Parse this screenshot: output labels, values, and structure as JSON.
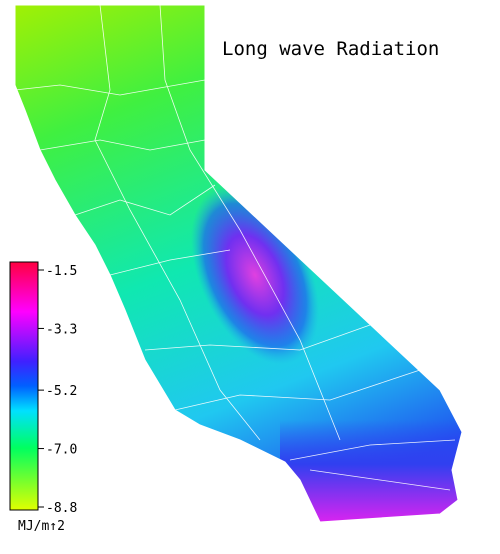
{
  "title": "Long wave Radiation",
  "colorbar": {
    "lim": [
      -8.8,
      -1.5
    ],
    "ticks": [
      -1.5,
      -3.3,
      -5.2,
      {
        "value": -7.0,
        "label": "-7.0"
      },
      -8.8
    ],
    "unit": "MJ/m↑2"
  }
}
